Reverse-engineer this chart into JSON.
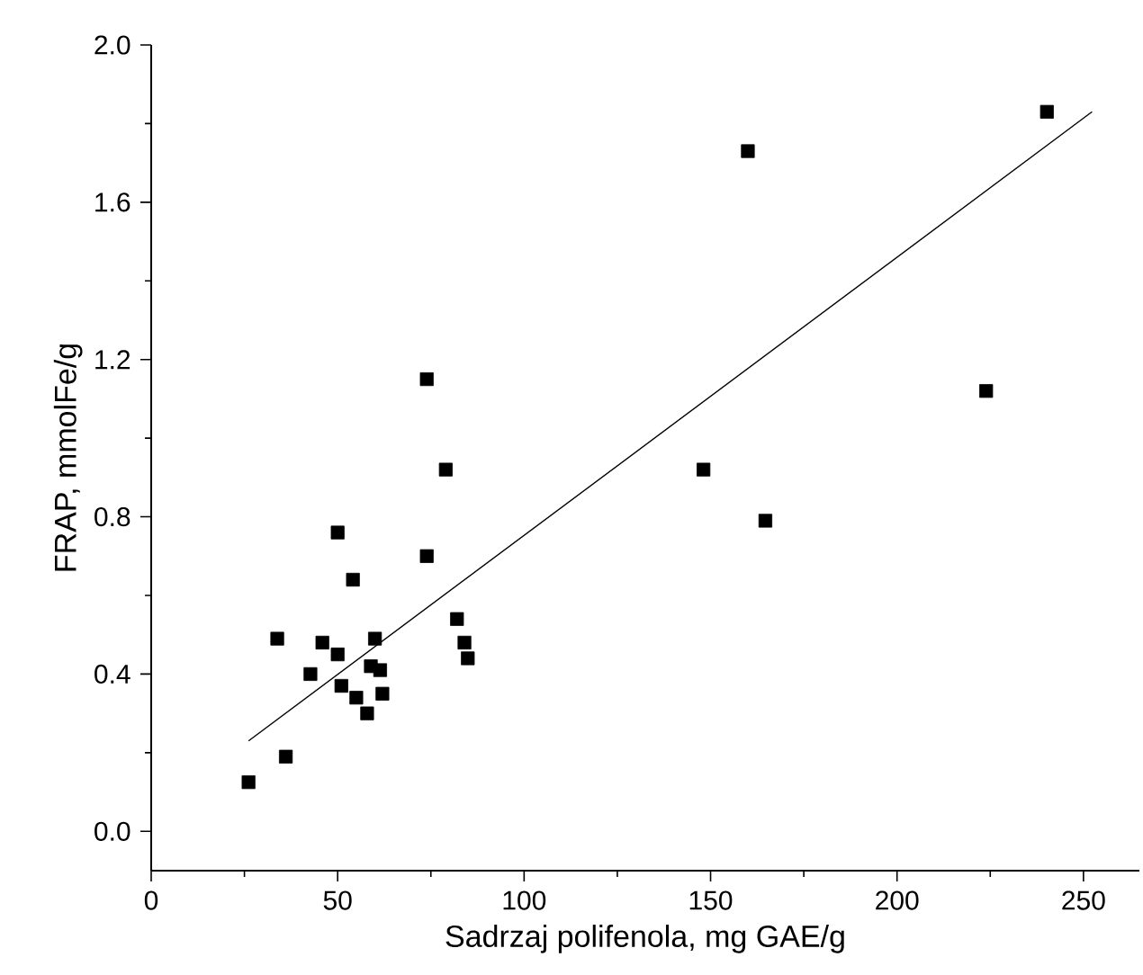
{
  "chart_data": {
    "type": "scatter",
    "xlabel": "Sadrzaj  polifenola, mg GAE/g",
    "ylabel": "FRAP, mmolFe/g",
    "xlim": [
      0,
      265
    ],
    "ylim": [
      -0.1,
      2.0
    ],
    "xticks": [
      0,
      50,
      100,
      150,
      200,
      250
    ],
    "yticks": [
      {
        "value": 0,
        "label": "0.0"
      },
      0.4,
      0.8,
      1.2,
      1.6,
      {
        "value": 2,
        "label": "2.0"
      }
    ],
    "grid": false,
    "series": [
      {
        "marker": "square",
        "color": "#000000",
        "x": [
          26.1,
          36.1,
          33.8,
          42.7,
          45.9,
          50.0,
          50.0,
          51.0,
          54.1,
          55.0,
          57.9,
          58.9,
          60.0,
          61.4,
          62.0,
          73.9,
          73.9,
          79.0,
          82.0,
          84.0,
          84.9,
          148.1,
          160.0,
          164.7,
          223.9,
          240.2
        ],
        "values": [
          0.125,
          0.19,
          0.49,
          0.4,
          0.48,
          0.45,
          0.76,
          0.37,
          0.64,
          0.34,
          0.3,
          0.42,
          0.49,
          0.41,
          0.35,
          1.15,
          0.7,
          0.92,
          0.54,
          0.48,
          0.44,
          0.92,
          1.73,
          0.79,
          1.12,
          1.83
        ]
      },
      {
        "type": "line",
        "line_style": "solid",
        "marker": "none",
        "color": "#000000",
        "x": [
          26.1,
          252.3
        ],
        "values": [
          0.23,
          1.83
        ]
      }
    ]
  }
}
